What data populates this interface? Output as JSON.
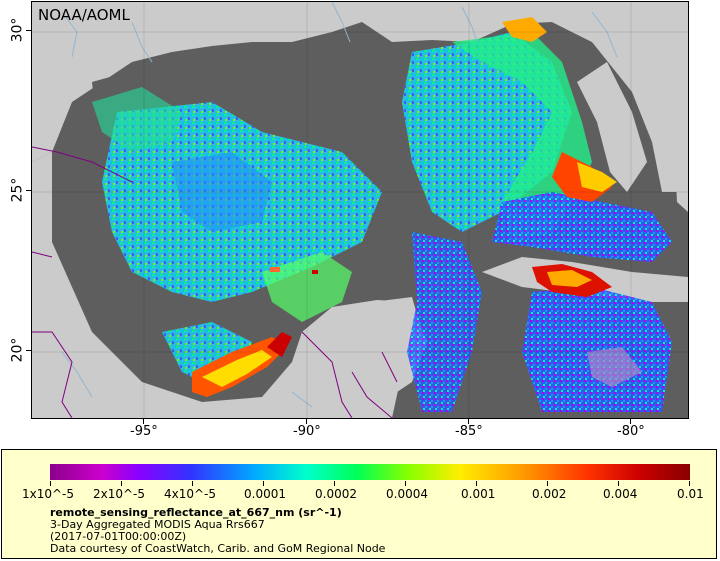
{
  "map": {
    "source_label": "NOAA/AOML",
    "colors": {
      "land": "#cbcbcb",
      "no_data": "#5e5e5e",
      "river": "#8fb7d4",
      "border": "#800080"
    }
  },
  "axes": {
    "lat_ticks": [
      "30°",
      "25°",
      "20°"
    ],
    "lon_ticks": [
      "-95°",
      "-90°",
      "-85°",
      "-80°"
    ]
  },
  "legend": {
    "colorbar_labels": [
      "1x10^-5",
      "2x10^-5",
      "4x10^-5",
      "0.0001",
      "0.0002",
      "0.0004",
      "0.001",
      "0.002",
      "0.004",
      "0.01"
    ],
    "variable_title": "remote_sensing_reflectance_at_667_nm (sr^-1)",
    "line2": "3-Day Aggregated MODIS Aqua Rrs667",
    "line3": "(2017-07-01T00:00:00Z)",
    "line4": "Data courtesy of CoastWatch, Carib. and GoM Regional Node"
  }
}
